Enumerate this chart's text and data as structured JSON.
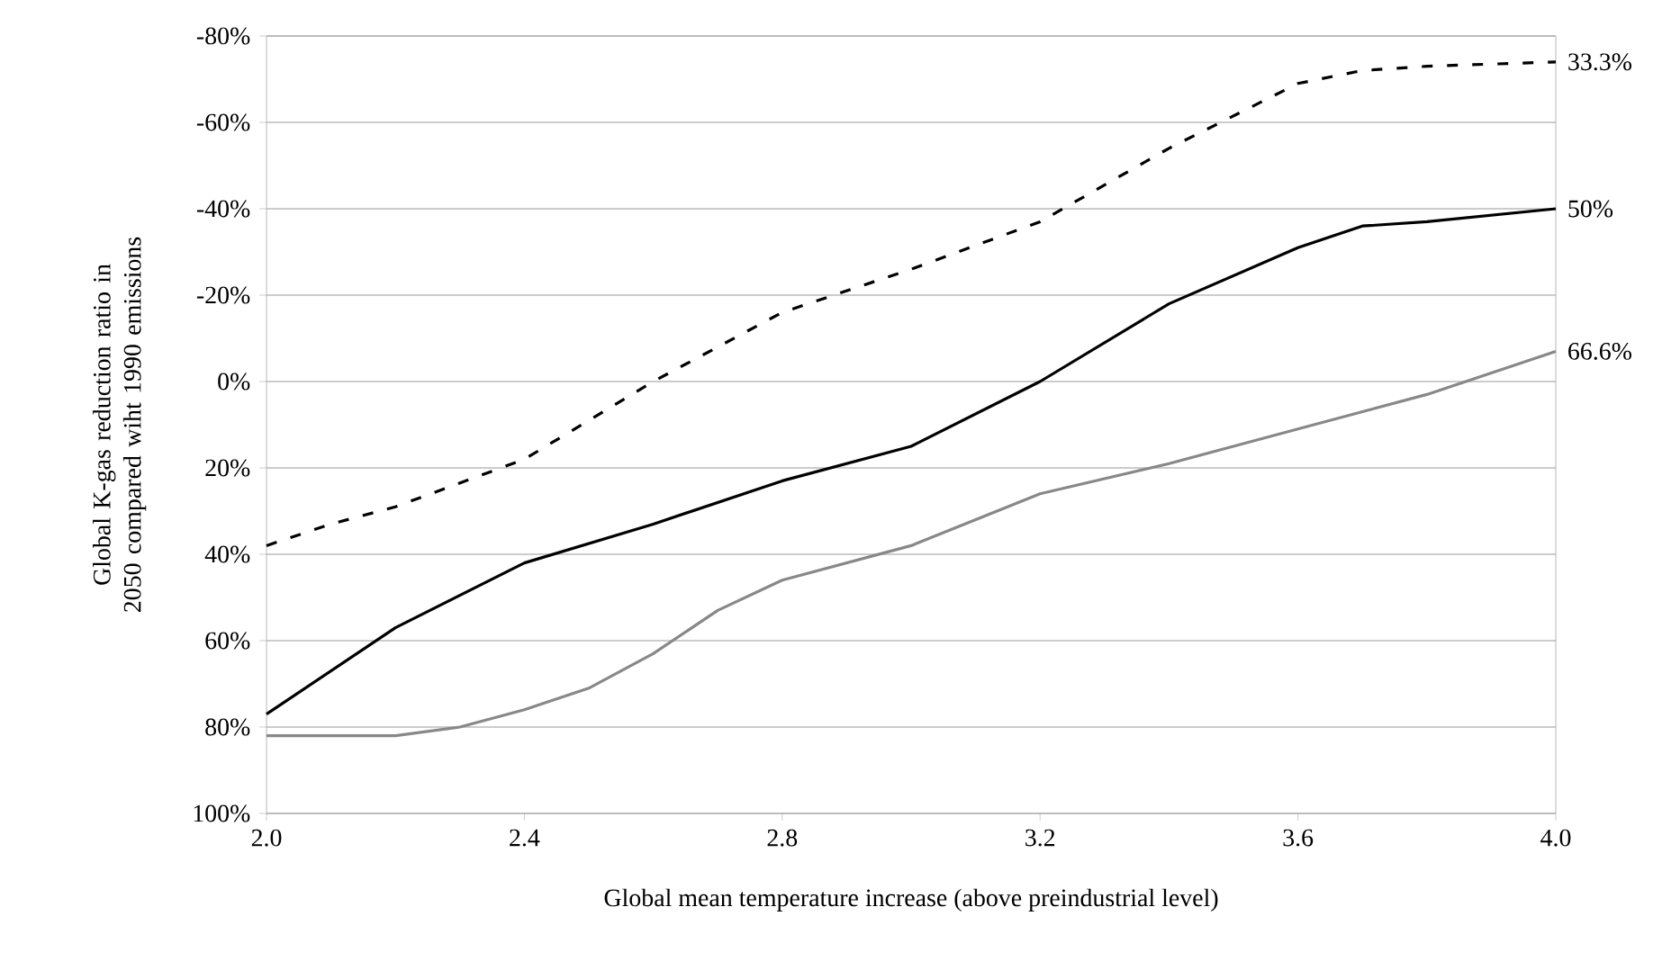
{
  "chart_data": {
    "type": "line",
    "xlabel": "Global mean temperature increase (above preindustrial level)",
    "ylabel": "Global K-gas reduction ratio in 2050 compared wiht 1990 emissions",
    "xlim": [
      2.0,
      4.0
    ],
    "xticks": [
      {
        "value": 2.0,
        "label": "2.0"
      },
      {
        "value": 2.4,
        "label": "2.4"
      },
      {
        "value": 2.8,
        "label": "2.8"
      },
      {
        "value": 3.2,
        "label": "3.2"
      },
      {
        "value": 3.6,
        "label": "3.6"
      },
      {
        "value": 4.0,
        "label": "4.0"
      }
    ],
    "ylim": [
      100,
      -80
    ],
    "yticks": [
      {
        "value": -80,
        "label": "-80%"
      },
      {
        "value": -60,
        "label": "-60%"
      },
      {
        "value": -40,
        "label": "-40%"
      },
      {
        "value": -20,
        "label": "-20%"
      },
      {
        "value": 0,
        "label": "0%"
      },
      {
        "value": 20,
        "label": "20%"
      },
      {
        "value": 40,
        "label": "40%"
      },
      {
        "value": 60,
        "label": "60%"
      },
      {
        "value": 80,
        "label": "80%"
      },
      {
        "value": 100,
        "label": "100%"
      }
    ],
    "grid": "y",
    "legend": false,
    "marker": "none",
    "series": [
      {
        "name": "33.3%",
        "color": "#000000",
        "line_style": "dashed",
        "x": [
          2.0,
          2.1,
          2.2,
          2.4,
          2.6,
          2.8,
          3.0,
          3.2,
          3.4,
          3.6,
          3.7,
          3.8,
          4.0
        ],
        "values": [
          38,
          33,
          29,
          18,
          0,
          -16,
          -26,
          -37,
          -54,
          -69,
          -72,
          -73,
          -74
        ]
      },
      {
        "name": "50%",
        "color": "#000000",
        "line_style": "solid",
        "x": [
          2.0,
          2.2,
          2.4,
          2.6,
          2.8,
          3.0,
          3.2,
          3.4,
          3.6,
          3.7,
          3.8,
          4.0
        ],
        "values": [
          77,
          57,
          42,
          33,
          23,
          15,
          0,
          -18,
          -31,
          -36,
          -37,
          -40
        ]
      },
      {
        "name": "66.6%",
        "color": "#888888",
        "line_style": "solid",
        "x": [
          2.0,
          2.2,
          2.3,
          2.4,
          2.5,
          2.6,
          2.7,
          2.8,
          3.0,
          3.2,
          3.4,
          3.6,
          3.8,
          4.0
        ],
        "values": [
          82,
          82,
          80,
          76,
          71,
          63,
          53,
          46,
          38,
          26,
          19,
          11,
          3,
          -7
        ]
      }
    ]
  }
}
